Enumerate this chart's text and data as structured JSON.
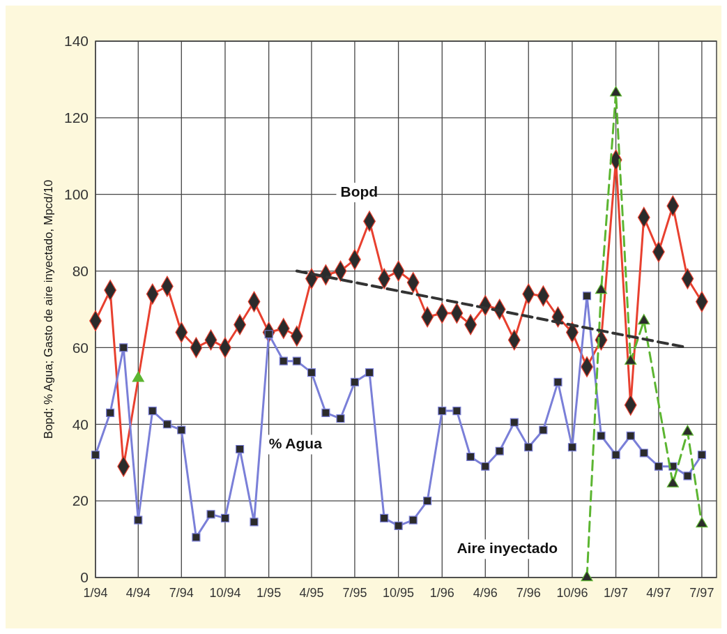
{
  "chart_data": {
    "type": "line",
    "ylabel": "Bopd; % Agua; Gasto de aire inyectado, Mpcd/10",
    "xlim": [
      "1994-01",
      "1997-08"
    ],
    "xticks": [
      {
        "value": "1994-01",
        "label": "1/94"
      },
      {
        "value": "1994-04",
        "label": "4/94"
      },
      {
        "value": "1994-07",
        "label": "7/94"
      },
      {
        "value": "1994-10",
        "label": "10/94"
      },
      {
        "value": "1995-01",
        "label": "1/95"
      },
      {
        "value": "1995-04",
        "label": "4/95"
      },
      {
        "value": "1995-07",
        "label": "7/95"
      },
      {
        "value": "1995-10",
        "label": "10/95"
      },
      {
        "value": "1996-01",
        "label": "1/96"
      },
      {
        "value": "1996-04",
        "label": "4/96"
      },
      {
        "value": "1996-07",
        "label": "7/96"
      },
      {
        "value": "1996-10",
        "label": "10/96"
      },
      {
        "value": "1997-01",
        "label": "1/97"
      },
      {
        "value": "1997-04",
        "label": "4/97"
      },
      {
        "value": "1997-07",
        "label": "7/97"
      }
    ],
    "ylim": [
      0,
      140
    ],
    "yticks": [
      0,
      20,
      40,
      60,
      80,
      100,
      120,
      140
    ],
    "grid": true,
    "legend": false,
    "series": [
      {
        "name": "Bopd",
        "color": "#e8402f",
        "marker": "diamond",
        "x": [
          "1994-01",
          "1994-02",
          "1994-03",
          "1994-05",
          "1994-06",
          "1994-07",
          "1994-08",
          "1994-09",
          "1994-10",
          "1994-11",
          "1994-12",
          "1995-01",
          "1995-02",
          "1995-03",
          "1995-04",
          "1995-05",
          "1995-06",
          "1995-07",
          "1995-08",
          "1995-09",
          "1995-10",
          "1995-11",
          "1995-12",
          "1996-01",
          "1996-02",
          "1996-03",
          "1996-04",
          "1996-05",
          "1996-06",
          "1996-07",
          "1996-08",
          "1996-09",
          "1996-10",
          "1996-11",
          "1996-12",
          "1997-01",
          "1997-02",
          "1997-03",
          "1997-04",
          "1997-05",
          "1997-06",
          "1997-07"
        ],
        "values": [
          67,
          75,
          29,
          74,
          76,
          64,
          60,
          62,
          60,
          66,
          72,
          64,
          65,
          63,
          78,
          79,
          80,
          83,
          93,
          78,
          80,
          77,
          68,
          69,
          69,
          66,
          71,
          70,
          62,
          74,
          73.5,
          68,
          64,
          55,
          62,
          109,
          45,
          94,
          85,
          97,
          78,
          72
        ]
      },
      {
        "name": "% Agua",
        "color": "#7a7fd8",
        "marker": "square",
        "x": [
          "1994-01",
          "1994-02",
          "1994-03",
          "1994-04",
          "1994-05",
          "1994-06",
          "1994-07",
          "1994-08",
          "1994-09",
          "1994-10",
          "1994-11",
          "1994-12",
          "1995-01",
          "1995-02",
          "1995-03",
          "1995-04",
          "1995-05",
          "1995-06",
          "1995-07",
          "1995-08",
          "1995-09",
          "1995-10",
          "1995-11",
          "1995-12",
          "1996-01",
          "1996-02",
          "1996-03",
          "1996-04",
          "1996-05",
          "1996-06",
          "1996-07",
          "1996-08",
          "1996-09",
          "1996-10",
          "1996-11",
          "1996-12",
          "1997-01",
          "1997-02",
          "1997-03",
          "1997-04",
          "1997-05",
          "1997-06",
          "1997-07"
        ],
        "values": [
          32,
          43,
          60,
          15,
          43.5,
          40,
          38.5,
          10.5,
          16.5,
          15.5,
          33.5,
          14.5,
          63.5,
          56.5,
          56.5,
          53.5,
          43,
          41.5,
          51,
          53.5,
          15.5,
          13.5,
          15,
          20,
          43.5,
          43.5,
          31.5,
          29,
          33,
          40.5,
          34,
          38.5,
          51,
          34,
          73.5,
          37,
          32,
          37,
          32.5,
          29,
          29,
          26.5,
          32
        ]
      },
      {
        "name": "Aire inyectado",
        "color": "#5cb531",
        "marker": "triangle",
        "line_style": "dashed",
        "x": [
          "1994-04",
          "1994-05",
          "1996-11",
          "1996-12",
          "1997-01",
          "1997-02",
          "1997-03",
          "1997-05",
          "1997-06",
          "1997-07"
        ],
        "values": [
          52,
          null,
          0,
          75,
          126.5,
          56.5,
          67,
          24.5,
          38,
          14
        ]
      },
      {
        "color": "#333333",
        "marker": "none",
        "line_style": "dashed",
        "x": [
          "1995-03",
          "1997-06"
        ],
        "values": [
          80,
          60
        ]
      }
    ]
  }
}
